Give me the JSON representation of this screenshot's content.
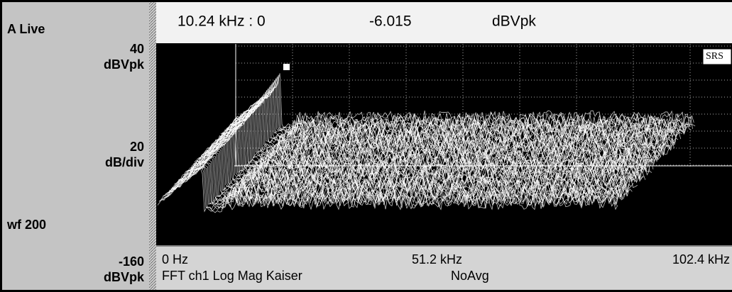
{
  "left_panel": {
    "title": "A Live",
    "top_value": "40",
    "top_unit": "dBVpk",
    "scale_value": "20",
    "scale_unit": "dB/div",
    "waterfall": "wf 200",
    "bottom_value": "-160",
    "bottom_unit": "dBVpk"
  },
  "header": {
    "marker_position": "10.24 kHz : 0",
    "marker_value": "-6.015",
    "marker_unit": "dBVpk"
  },
  "plot": {
    "logo": "SRS"
  },
  "footer": {
    "start": "0 Hz",
    "center": "51.2 kHz",
    "end": "102.4 kHz",
    "measurement": "FFT ch1 Log Mag Kaiser",
    "averaging": "NoAvg"
  }
}
